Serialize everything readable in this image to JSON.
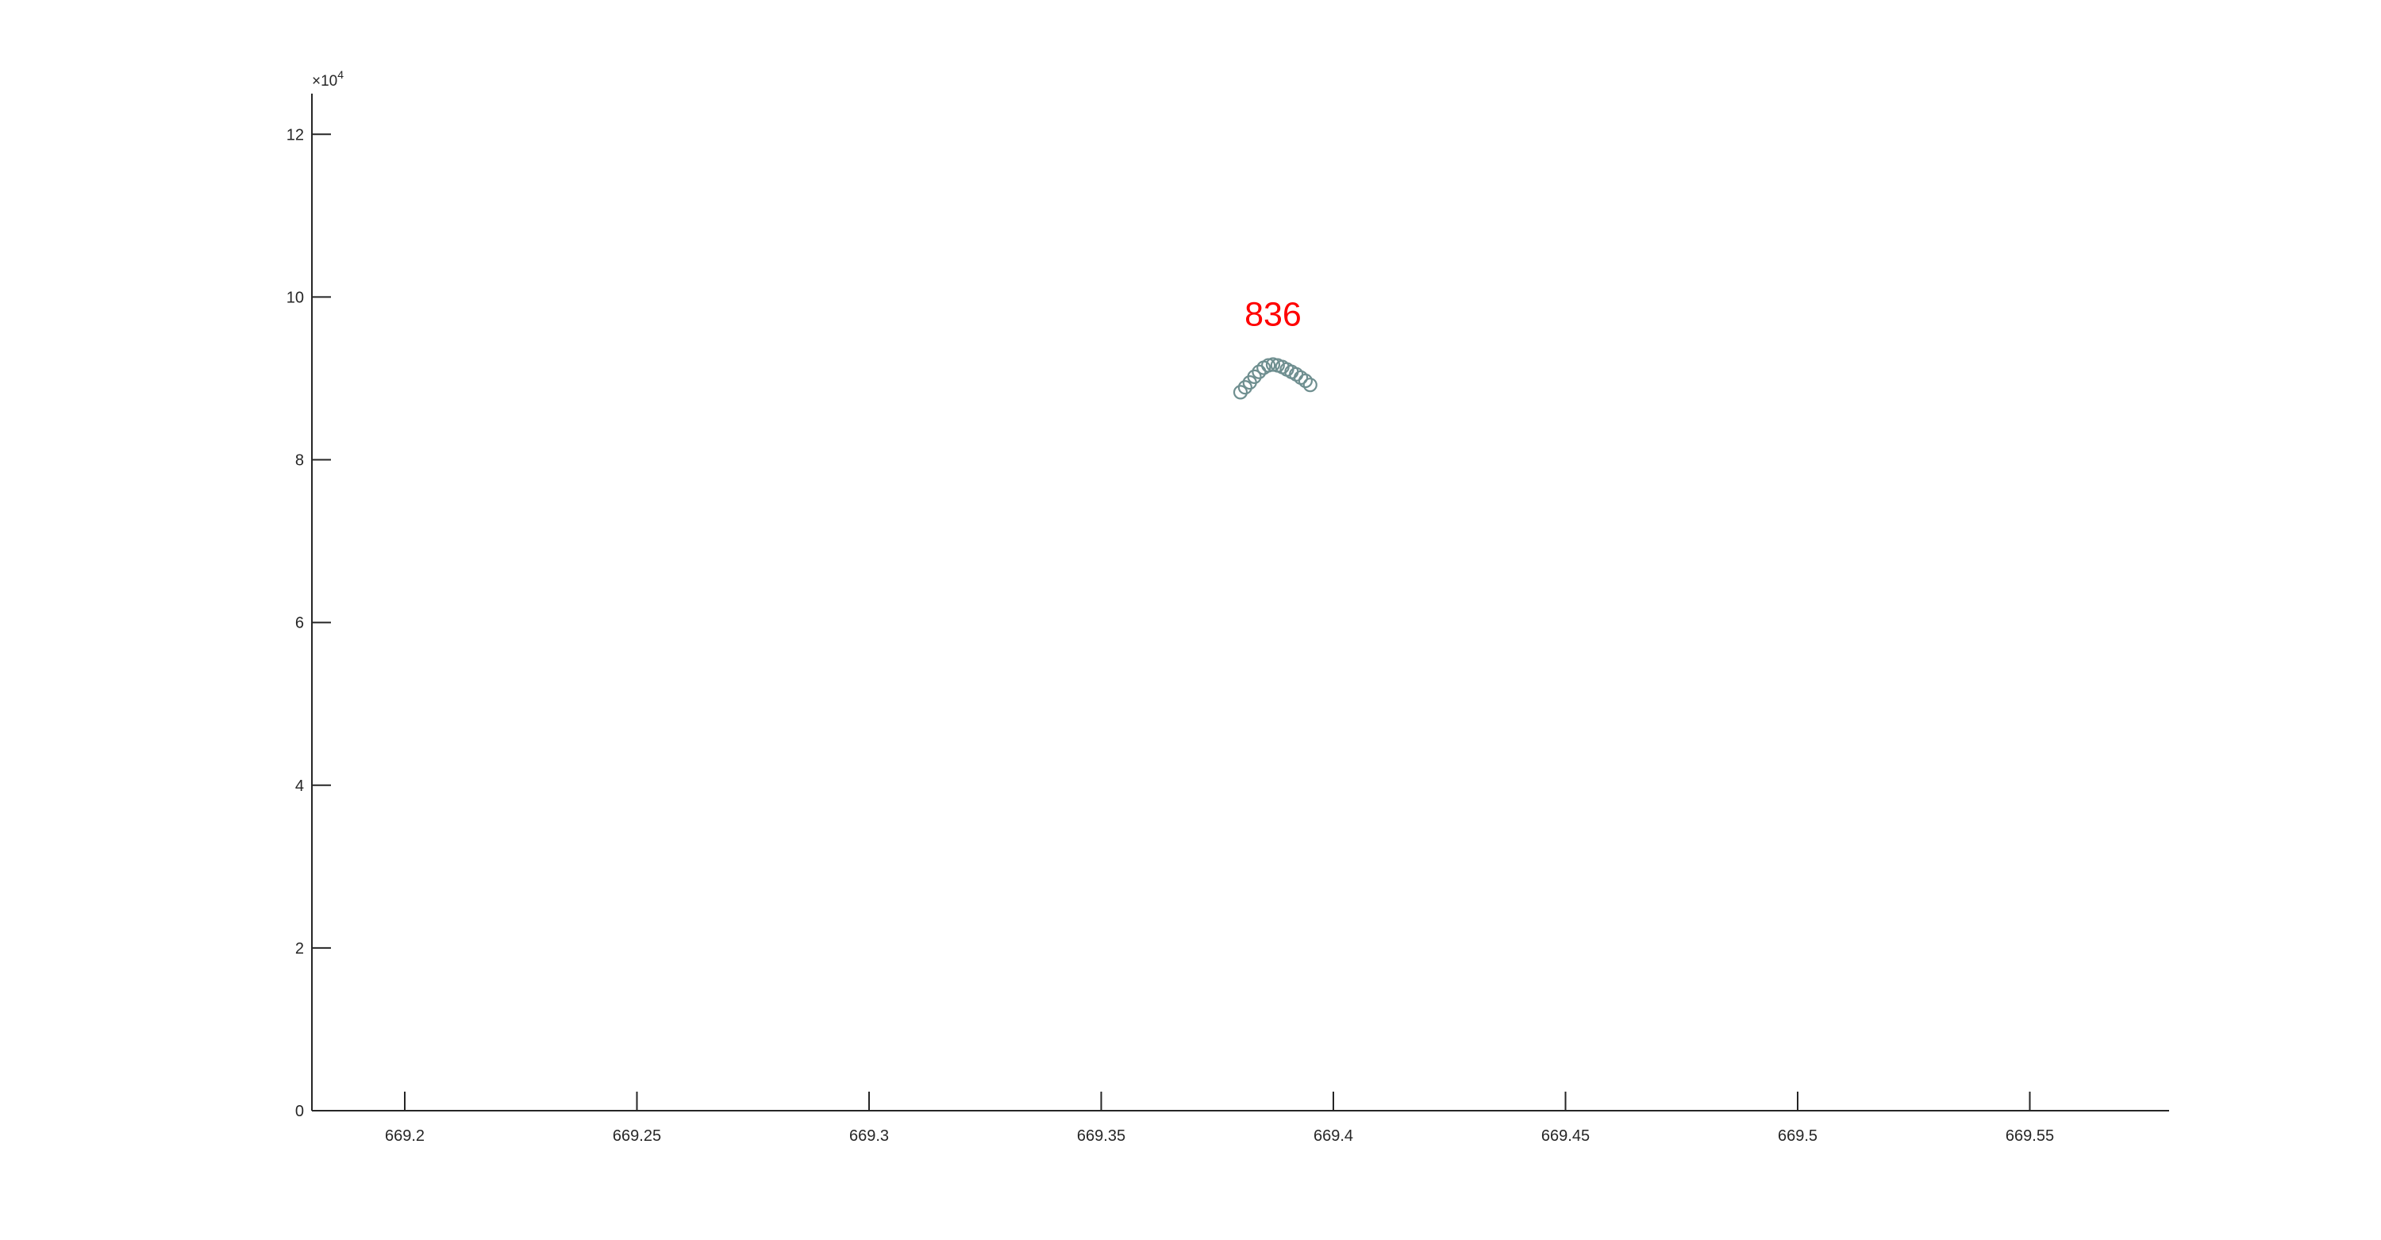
{
  "chart_data": {
    "type": "scatter",
    "title": "",
    "xlabel": "",
    "ylabel": "",
    "xlim": [
      669.18,
      669.58
    ],
    "ylim": [
      0,
      125000
    ],
    "x_ticks": [
      669.2,
      669.25,
      669.3,
      669.35,
      669.4,
      669.45,
      669.5,
      669.55
    ],
    "x_tick_labels": [
      "669.2",
      "669.25",
      "669.3",
      "669.35",
      "669.4",
      "669.45",
      "669.5",
      "669.55"
    ],
    "y_ticks": [
      0,
      20000,
      40000,
      60000,
      80000,
      100000,
      120000
    ],
    "y_tick_labels": [
      "0",
      "2",
      "4",
      "6",
      "8",
      "10",
      "12"
    ],
    "y_exponent": {
      "base": "×10",
      "power": "4"
    },
    "grid": false,
    "legend": "none",
    "marker": "open circle",
    "marker_color": "#6f8f90",
    "annotation_color": "#ff0000",
    "axis_color": "#262626",
    "annotations": [
      {
        "text": "836",
        "x": 669.387,
        "y": 96500
      }
    ],
    "series": [
      {
        "x": [
          669.38,
          669.381,
          669.382,
          669.383,
          669.384,
          669.385,
          669.386,
          669.387,
          669.388,
          669.389,
          669.39,
          669.391,
          669.392,
          669.393,
          669.394,
          669.395
        ],
        "y": [
          88300,
          88900,
          89500,
          90200,
          90800,
          91300,
          91600,
          91700,
          91600,
          91400,
          91100,
          90800,
          90500,
          90100,
          89700,
          89200
        ]
      }
    ]
  }
}
